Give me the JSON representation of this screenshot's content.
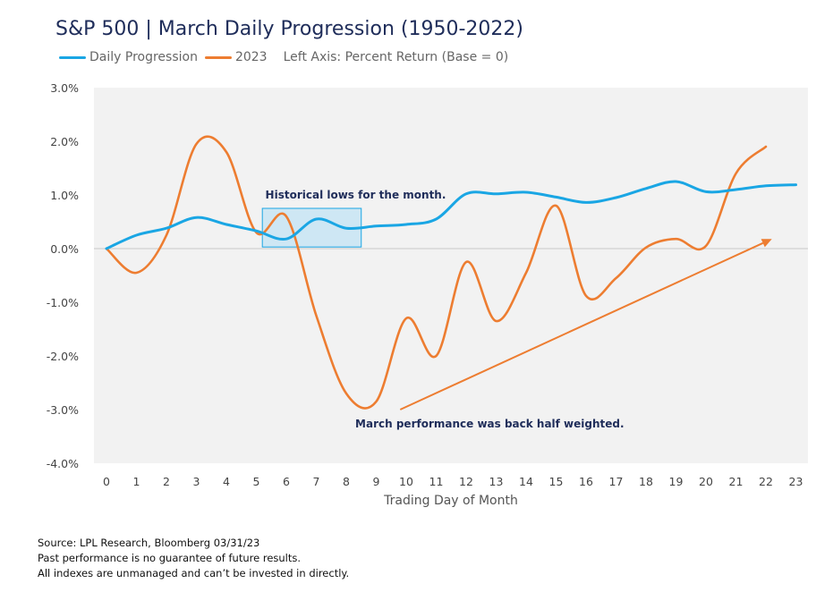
{
  "chart_data": {
    "type": "line",
    "title": "S&P 500 | March Daily Progression (1950-2022)",
    "legend_note": "Left Axis: Percent Return (Base = 0)",
    "xlabel": "Trading Day of Month",
    "ylabel": "",
    "x": [
      0,
      1,
      2,
      3,
      4,
      5,
      6,
      7,
      8,
      9,
      10,
      11,
      12,
      13,
      14,
      15,
      16,
      17,
      18,
      19,
      20,
      21,
      22,
      23
    ],
    "ylim": [
      -4.0,
      3.0
    ],
    "yticks": [
      3.0,
      2.0,
      1.0,
      0.0,
      -1.0,
      -2.0,
      -3.0,
      -4.0
    ],
    "ytick_labels": [
      "3.0%",
      "2.0%",
      "1.0%",
      "0.0%",
      "-1.0%",
      "-2.0%",
      "-3.0%",
      "-4.0%"
    ],
    "xtick_labels": [
      "0",
      "1",
      "2",
      "3",
      "4",
      "5",
      "6",
      "7",
      "8",
      "9",
      "10",
      "11",
      "12",
      "13",
      "14",
      "15",
      "16",
      "17",
      "18",
      "19",
      "20",
      "21",
      "22",
      "23"
    ],
    "grid": false,
    "legend_position": "top-left",
    "series": [
      {
        "name": "Daily Progression",
        "color": "#1aa6e4",
        "x": [
          0,
          1,
          2,
          3,
          4,
          5,
          6,
          7,
          8,
          9,
          10,
          11,
          12,
          13,
          14,
          15,
          16,
          17,
          18,
          19,
          20,
          21,
          22,
          23
        ],
        "values": [
          0.0,
          0.25,
          0.38,
          0.58,
          0.45,
          0.33,
          0.18,
          0.55,
          0.38,
          0.42,
          0.45,
          0.55,
          1.02,
          1.02,
          1.05,
          0.96,
          0.86,
          0.95,
          1.12,
          1.25,
          1.06,
          1.1,
          1.17,
          1.19
        ]
      },
      {
        "name": "2023",
        "color": "#ed7d31",
        "x": [
          0,
          1,
          2,
          3,
          4,
          5,
          6,
          7,
          8,
          9,
          10,
          11,
          12,
          13,
          14,
          15,
          16,
          17,
          18,
          19,
          20,
          21,
          22
        ],
        "values": [
          0.0,
          -0.45,
          0.25,
          1.95,
          1.8,
          0.3,
          0.6,
          -1.25,
          -2.7,
          -2.85,
          -1.3,
          -2.0,
          -0.25,
          -1.35,
          -0.45,
          0.8,
          -0.88,
          -0.55,
          0.02,
          0.18,
          0.05,
          1.4,
          1.9
        ]
      }
    ],
    "annotations": [
      {
        "text": "Historical lows for the month.",
        "x": 5.3,
        "y": 0.93
      },
      {
        "text": "March performance was back half weighted.",
        "x": 8.3,
        "y": -3.33
      }
    ],
    "highlight_box": {
      "x0": 5.2,
      "x1": 8.5,
      "y0": 0.03,
      "y1": 0.75
    },
    "arrow": {
      "x0": 9.8,
      "y0": -3.0,
      "x1": 22.2,
      "y1": 0.18,
      "color": "#ed7d31"
    }
  },
  "footnotes": [
    "Source: LPL Research, Bloomberg 03/31/23",
    "Past performance is no guarantee of future results.",
    "All indexes are unmanaged and can’t be invested in directly."
  ]
}
